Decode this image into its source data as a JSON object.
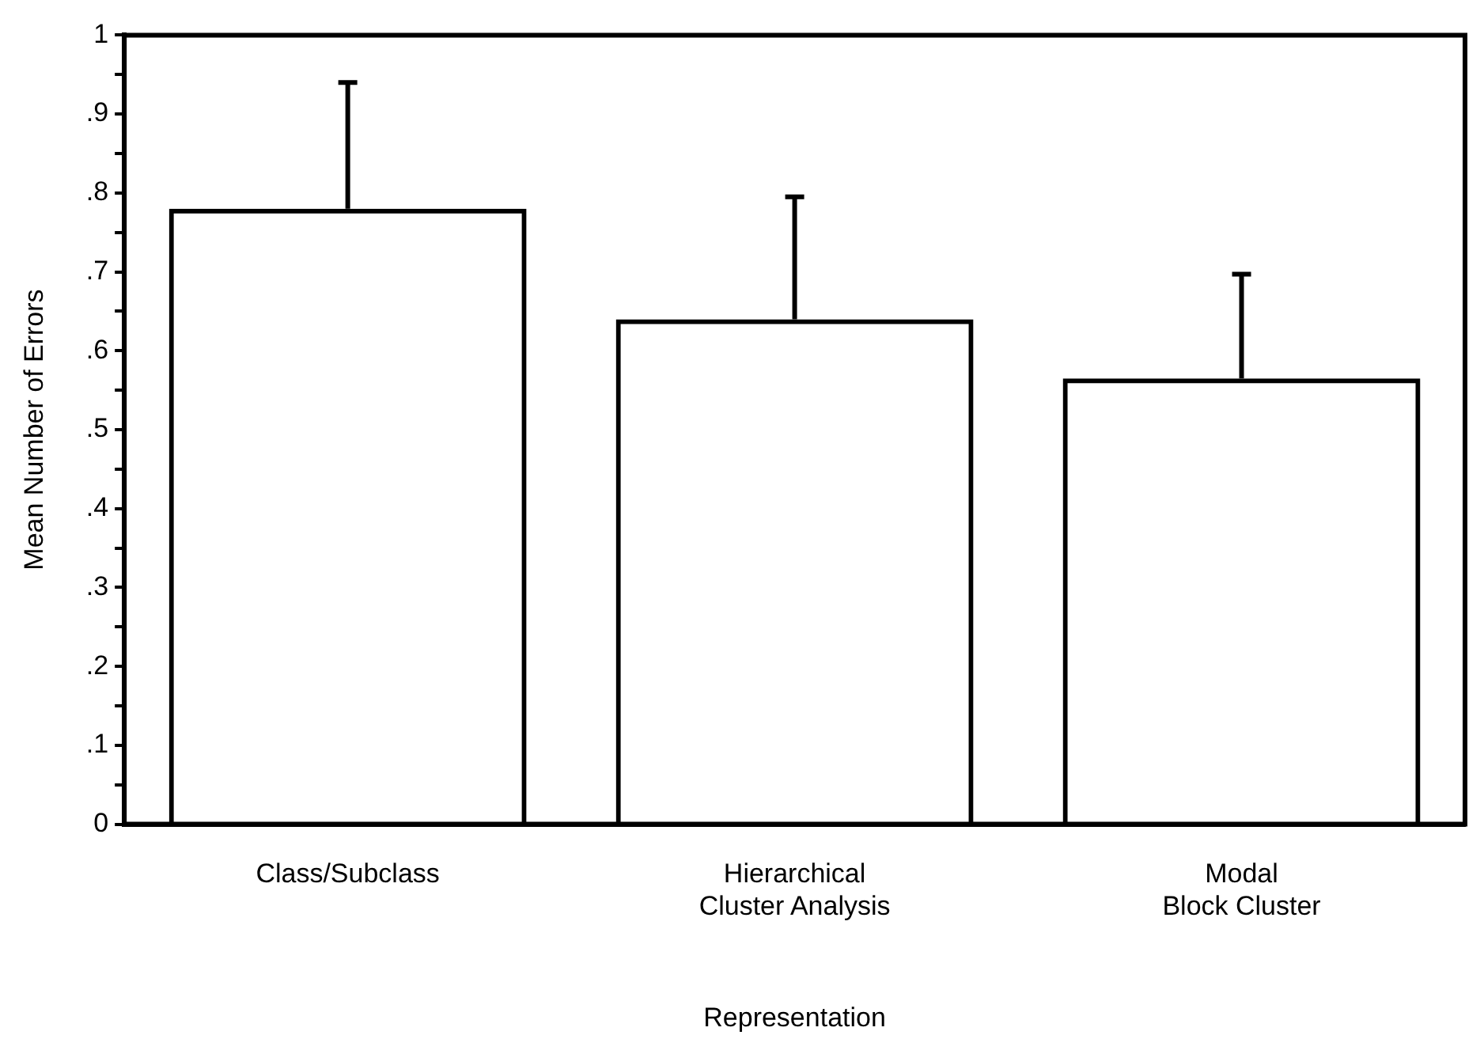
{
  "chart_data": {
    "type": "bar",
    "xlabel": "Representation",
    "ylabel": "Mean Number of Errors",
    "categories": [
      "Class/Subclass",
      "Hierarchical\nCluster Analysis",
      "Modal\nBlock Cluster"
    ],
    "values": [
      0.78,
      0.64,
      0.565
    ],
    "errors": [
      [
        0.78,
        0.94
      ],
      [
        0.64,
        0.795
      ],
      [
        0.565,
        0.697
      ]
    ],
    "color": "#000000",
    "ylim": [
      0,
      1
    ],
    "yticks": [
      0,
      {
        "value": 0.05,
        "label": null
      },
      {
        "value": 0.1,
        "label": ".1"
      },
      {
        "value": 0.15,
        "label": null
      },
      {
        "value": 0.2,
        "label": ".2"
      },
      {
        "value": 0.25,
        "label": null
      },
      {
        "value": 0.3,
        "label": ".3"
      },
      {
        "value": 0.35,
        "label": null
      },
      {
        "value": 0.4,
        "label": ".4"
      },
      {
        "value": 0.45,
        "label": null
      },
      {
        "value": 0.5,
        "label": ".5"
      },
      {
        "value": 0.55,
        "label": null
      },
      {
        "value": 0.6,
        "label": ".6"
      },
      {
        "value": 0.65,
        "label": null
      },
      {
        "value": 0.7,
        "label": ".7"
      },
      {
        "value": 0.75,
        "label": null
      },
      {
        "value": 0.8,
        "label": ".8"
      },
      {
        "value": 0.85,
        "label": null
      },
      {
        "value": 0.9,
        "label": ".9"
      },
      {
        "value": 0.95,
        "label": null
      },
      1
    ],
    "grid": false,
    "legend": false
  }
}
